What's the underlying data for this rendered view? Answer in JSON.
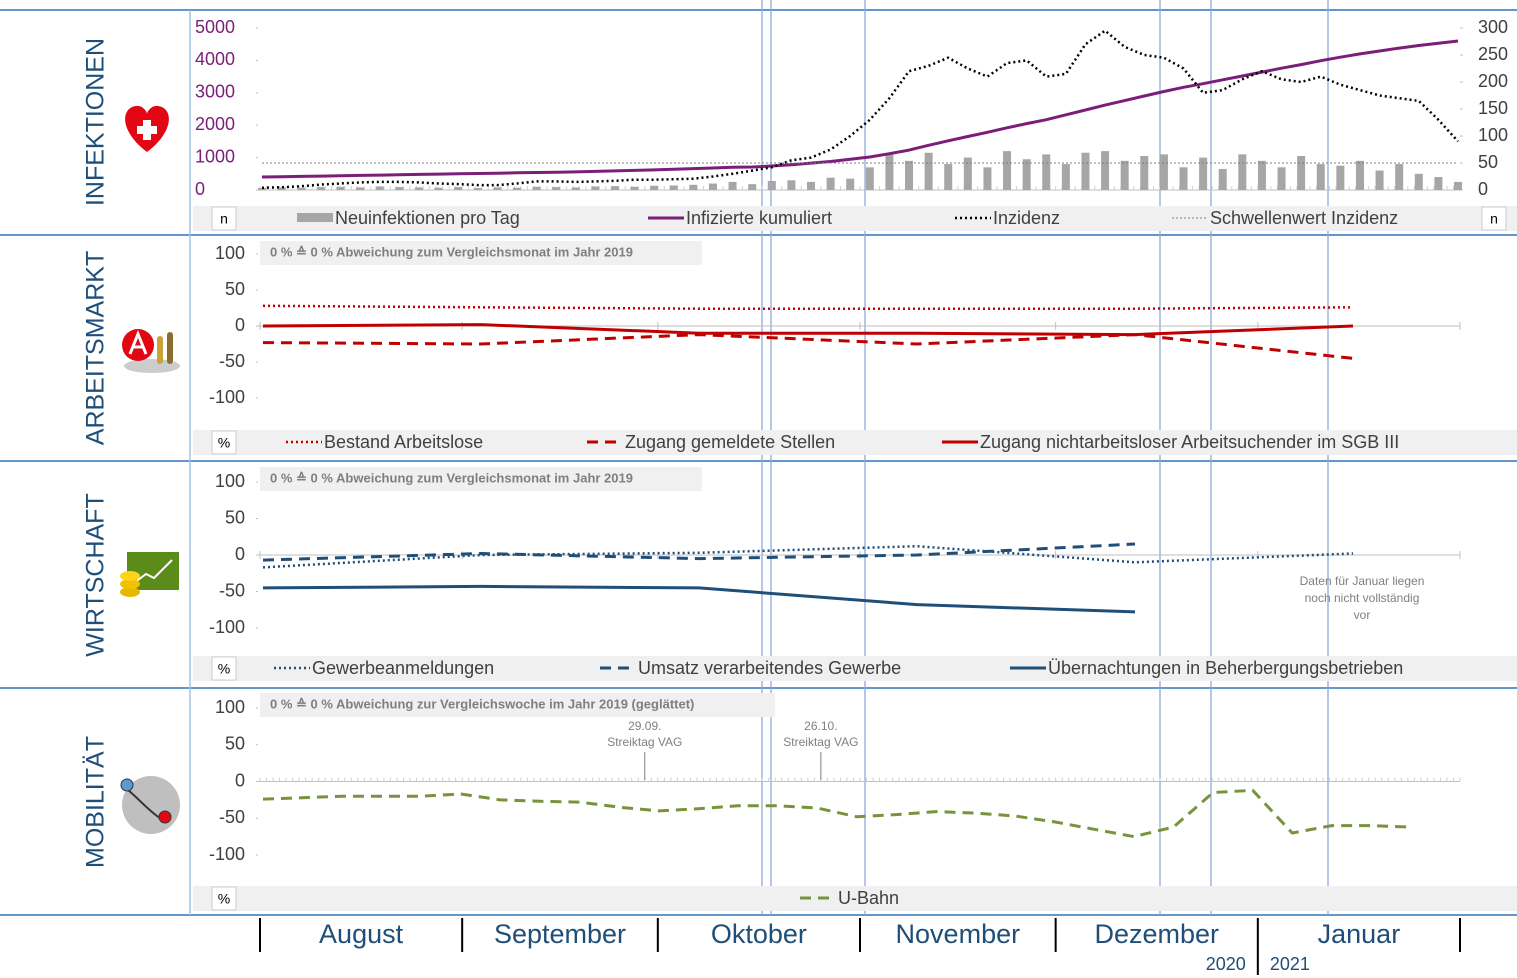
{
  "x_axis": {
    "months": [
      "August",
      "September",
      "Oktober",
      "November",
      "Dezember",
      "Januar"
    ],
    "years": [
      "2020",
      "2021"
    ]
  },
  "chart_data": [
    {
      "type": "combo",
      "panel_label": "INFEKTIONEN",
      "unit_left": "n",
      "unit_right": "n",
      "ylim": [
        0,
        5000
      ],
      "yticks": [
        0,
        1000,
        2000,
        3000,
        4000,
        5000
      ],
      "y2lim": [
        0,
        300
      ],
      "y2ticks": [
        0,
        50,
        100,
        150,
        200,
        250,
        300
      ],
      "series": [
        {
          "name": "Neuinfektionen pro Tag",
          "kind": "bar",
          "color": "#a6a6a6",
          "values": [
            60,
            80,
            70,
            90,
            100,
            80,
            110,
            90,
            80,
            70,
            90,
            60,
            80,
            70,
            100,
            90,
            80,
            110,
            120,
            100,
            130,
            140,
            160,
            200,
            250,
            180,
            280,
            300,
            250,
            380,
            350,
            700,
            1100,
            900,
            1150,
            800,
            1000,
            700,
            1200,
            950,
            1100,
            800,
            1150,
            1200,
            900,
            1050,
            1100,
            700,
            1000,
            650,
            1100,
            900,
            700,
            1050,
            800,
            750,
            900,
            600,
            800,
            500,
            400,
            250
          ]
        },
        {
          "name": "Infizierte kumuliert",
          "kind": "line",
          "style": "solid",
          "color": "#7b1e7a",
          "values": [
            400,
            410,
            420,
            430,
            440,
            450,
            460,
            470,
            480,
            490,
            500,
            510,
            520,
            530,
            540,
            550,
            560,
            575,
            590,
            605,
            620,
            640,
            660,
            680,
            700,
            710,
            740,
            780,
            830,
            880,
            950,
            1020,
            1120,
            1230,
            1380,
            1520,
            1650,
            1780,
            1920,
            2050,
            2170,
            2320,
            2470,
            2620,
            2760,
            2900,
            3040,
            3170,
            3280,
            3400,
            3520,
            3640,
            3760,
            3870,
            3990,
            4100,
            4200,
            4290,
            4380,
            4460,
            4530,
            4600
          ]
        },
        {
          "name": "Inzidenz",
          "kind": "line",
          "style": "dotted",
          "color": "#000000",
          "axis": "y2",
          "values": [
            4,
            5,
            7,
            10,
            12,
            14,
            15,
            15,
            14,
            12,
            11,
            9,
            9,
            12,
            16,
            16,
            15,
            16,
            17,
            19,
            19,
            20,
            21,
            25,
            30,
            36,
            42,
            55,
            60,
            75,
            100,
            130,
            170,
            220,
            230,
            245,
            225,
            210,
            235,
            240,
            210,
            215,
            270,
            295,
            265,
            250,
            245,
            225,
            180,
            185,
            205,
            220,
            205,
            200,
            210,
            195,
            185,
            175,
            170,
            165,
            130,
            90
          ]
        },
        {
          "name": "Schwellenwert Inzidenz",
          "kind": "line",
          "style": "thin",
          "color": "#7f7f7f",
          "axis": "y2",
          "values": [
            50,
            50
          ]
        }
      ]
    },
    {
      "type": "line",
      "panel_label": "ARBEITSMARKT",
      "unit": "%",
      "note": "0 % ≙ 0 % Abweichung zum Vergleichsmonat im Jahr 2019",
      "ylim": [
        -100,
        100
      ],
      "yticks": [
        -100,
        -50,
        0,
        50,
        100
      ],
      "series": [
        {
          "name": "Bestand Arbeitslose",
          "style": "dotted",
          "color": "#c00000",
          "values": [
            28,
            26,
            24,
            24,
            24,
            26
          ]
        },
        {
          "name": "Zugang gemeldete Stellen",
          "style": "dashed",
          "color": "#c00000",
          "values": [
            -23,
            -25,
            -12,
            -25,
            -12,
            -45
          ]
        },
        {
          "name": "Zugang nichtarbeitsloser Arbeitsuchender im SGB III",
          "style": "solid",
          "color": "#c00000",
          "values": [
            0,
            2,
            -10,
            -10,
            -12,
            0
          ]
        }
      ]
    },
    {
      "type": "line",
      "panel_label": "WIRTSCHAFT",
      "unit": "%",
      "note": "0 % ≙ 0 % Abweichung zum Vergleichsmonat im Jahr 2019",
      "note_lines": [
        "Daten für Januar liegen",
        "noch nicht vollständig",
        "vor"
      ],
      "ylim": [
        -100,
        100
      ],
      "yticks": [
        -100,
        -50,
        0,
        50,
        100
      ],
      "series": [
        {
          "name": "Gewerbeanmeldungen",
          "style": "dotted",
          "color": "#1f4e79",
          "values": [
            -17,
            0,
            3,
            12,
            -10,
            2
          ]
        },
        {
          "name": "Umsatz verarbeitendes Gewerbe",
          "style": "dashed",
          "color": "#1f4e79",
          "values": [
            -7,
            2,
            -5,
            0,
            15,
            null
          ]
        },
        {
          "name": "Übernachtungen in Beherbergungsbetrieben",
          "style": "solid",
          "color": "#1f4e79",
          "values": [
            -45,
            -43,
            -45,
            -68,
            -78,
            null
          ]
        }
      ]
    },
    {
      "type": "line",
      "panel_label": "MOBILITÄT",
      "unit": "%",
      "note": "0 % ≙ 0 % Abweichung zur Vergleichswoche im Jahr 2019 (geglättet)",
      "ylim": [
        -100,
        100
      ],
      "yticks": [
        -100,
        -50,
        0,
        50,
        100
      ],
      "events": [
        {
          "date": "29.09.",
          "label": "Streiktag VAG"
        },
        {
          "date": "26.10.",
          "label": "Streiktag VAG"
        }
      ],
      "series": [
        {
          "name": "U-Bahn",
          "style": "dashed",
          "color": "#77933c",
          "values": [
            -24,
            -22,
            -20,
            -20,
            -20,
            -17,
            -25,
            -27,
            -28,
            -35,
            -40,
            -37,
            -33,
            -33,
            -36,
            -48,
            -45,
            -41,
            -43,
            -47,
            -55,
            -65,
            -75,
            -62,
            -15,
            -12,
            -70,
            -60,
            -60,
            -62
          ]
        }
      ]
    }
  ]
}
